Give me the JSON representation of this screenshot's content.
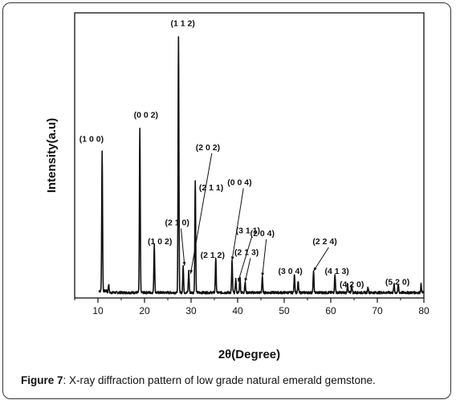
{
  "caption": {
    "label": "Figure 7",
    "text": ": X-ray diffraction pattern of low grade natural emerald gemstone."
  },
  "colors": {
    "trace": "#111111",
    "axis": "#111111",
    "frame": "#333333"
  },
  "chart_data": {
    "type": "line",
    "title": "",
    "xlabel": "2θ(Degree)",
    "ylabel": "Intensity(a.u)",
    "xlim": [
      5,
      80
    ],
    "ylim": [
      0,
      100
    ],
    "xticks": [
      10,
      20,
      30,
      40,
      50,
      60,
      70,
      80
    ],
    "grid": false,
    "baseline": 2,
    "peaks": [
      {
        "x": 10.9,
        "y": 52
      },
      {
        "x": 12.3,
        "y": 3
      },
      {
        "x": 19.0,
        "y": 61
      },
      {
        "x": 22.1,
        "y": 18
      },
      {
        "x": 27.3,
        "y": 95
      },
      {
        "x": 28.3,
        "y": 10
      },
      {
        "x": 29.5,
        "y": 8
      },
      {
        "x": 30.9,
        "y": 42
      },
      {
        "x": 35.3,
        "y": 13
      },
      {
        "x": 38.8,
        "y": 12
      },
      {
        "x": 39.6,
        "y": 5
      },
      {
        "x": 40.5,
        "y": 6
      },
      {
        "x": 41.6,
        "y": 4
      },
      {
        "x": 45.3,
        "y": 6
      },
      {
        "x": 52.2,
        "y": 7
      },
      {
        "x": 53.0,
        "y": 4
      },
      {
        "x": 56.3,
        "y": 8
      },
      {
        "x": 60.9,
        "y": 7
      },
      {
        "x": 63.6,
        "y": 3
      },
      {
        "x": 64.5,
        "y": 3
      },
      {
        "x": 68.0,
        "y": 2
      },
      {
        "x": 73.6,
        "y": 3
      },
      {
        "x": 74.5,
        "y": 3
      },
      {
        "x": 79.4,
        "y": 3
      }
    ],
    "annotations": [
      {
        "label": "(1 0 0)",
        "x": 10.9,
        "y": 55,
        "tx": 6.0,
        "ty": 58,
        "arrow": false
      },
      {
        "label": "(0 0 2)",
        "x": 19.0,
        "y": 64,
        "tx": 17.7,
        "ty": 67,
        "arrow": false
      },
      {
        "label": "(1 1 2)",
        "x": 27.3,
        "y": 98,
        "tx": 25.6,
        "ty": 101,
        "arrow": false
      },
      {
        "label": "(2 0 2)",
        "x": 29.9,
        "y": 9,
        "tx": 31.0,
        "ty": 55,
        "arrow": true
      },
      {
        "label": "(2 1 1)",
        "x": 30.9,
        "y": 45,
        "tx": 31.7,
        "ty": 40,
        "arrow": false
      },
      {
        "label": "(0 0 4)",
        "x": 38.8,
        "y": 14,
        "tx": 37.8,
        "ty": 42,
        "arrow": true
      },
      {
        "label": "(2 1 0)",
        "x": 28.6,
        "y": 12,
        "tx": 24.4,
        "ty": 27,
        "arrow": true
      },
      {
        "label": "(1 0 2)",
        "x": 22.1,
        "y": 20,
        "tx": 20.7,
        "ty": 20,
        "arrow": false
      },
      {
        "label": "(2 1 2)",
        "x": 35.3,
        "y": 15,
        "tx": 32.0,
        "ty": 15,
        "arrow": false
      },
      {
        "label": "(3 1 1)",
        "x": 40.1,
        "y": 6,
        "tx": 39.6,
        "ty": 24,
        "arrow": true
      },
      {
        "label": "(2 1 3)",
        "x": 41.6,
        "y": 6,
        "tx": 39.3,
        "ty": 16,
        "arrow": true
      },
      {
        "label": "(2 0 4)",
        "x": 45.3,
        "y": 8,
        "tx": 42.7,
        "ty": 23,
        "arrow": true
      },
      {
        "label": "(3 0 4)",
        "x": 52.2,
        "y": 9,
        "tx": 48.7,
        "ty": 9,
        "arrow": false
      },
      {
        "label": "(2 2 4)",
        "x": 56.3,
        "y": 10,
        "tx": 56.1,
        "ty": 20,
        "arrow": true
      },
      {
        "label": "(4 1 3)",
        "x": 60.9,
        "y": 9,
        "tx": 58.7,
        "ty": 9,
        "arrow": false
      },
      {
        "label": "(4 2 0)",
        "x": 64.2,
        "y": 5,
        "tx": 61.9,
        "ty": 4,
        "arrow": false
      },
      {
        "label": "(5 2 0)",
        "x": 74.0,
        "y": 5,
        "tx": 71.7,
        "ty": 5,
        "arrow": false
      }
    ]
  }
}
